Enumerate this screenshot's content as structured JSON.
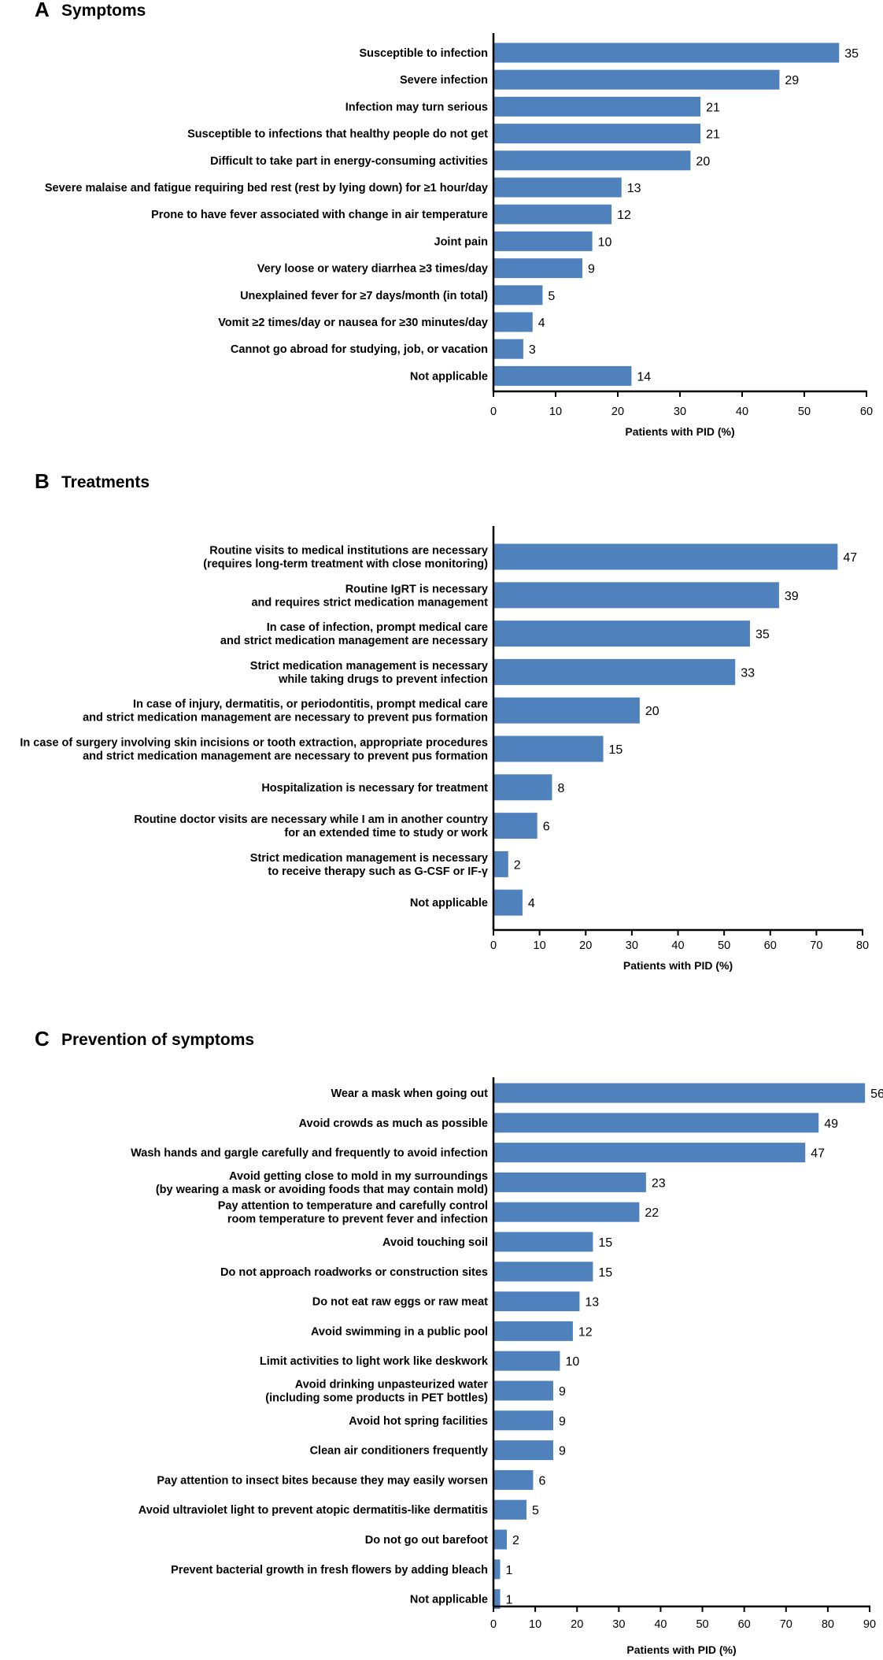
{
  "chart_data": [
    {
      "type": "bar",
      "orientation": "horizontal",
      "letter": "A",
      "title": "Symptoms",
      "xlabel": "Patients with PID (%)",
      "xlim": [
        0,
        60
      ],
      "xticks": [
        0,
        10,
        20,
        30,
        40,
        50,
        60
      ],
      "color": "#4f81bd",
      "categories": [
        [
          "Susceptible to infection"
        ],
        [
          "Severe infection"
        ],
        [
          "Infection may turn serious"
        ],
        [
          "Susceptible to infections that healthy people do not get"
        ],
        [
          "Difficult to take part in energy-consuming activities"
        ],
        [
          "Severe malaise and fatigue requiring bed rest (rest by lying down) for ≥1 hour/day"
        ],
        [
          "Prone to have fever associated with change in air temperature"
        ],
        [
          "Joint pain"
        ],
        [
          "Very loose or watery diarrhea ≥3 times/day"
        ],
        [
          "Unexplained fever for ≥7 days/month (in total)"
        ],
        [
          "Vomit ≥2 times/day or nausea for ≥30 minutes/day"
        ],
        [
          "Cannot go abroad for studying, job, or vacation"
        ],
        [
          "Not applicable"
        ]
      ],
      "values": [
        55.6,
        46.0,
        33.3,
        33.3,
        31.7,
        20.6,
        19.0,
        15.9,
        14.3,
        7.9,
        6.3,
        4.8,
        22.2
      ],
      "data_labels": [
        "35",
        "29",
        "21",
        "21",
        "20",
        "13",
        "12",
        "10",
        "9",
        "5",
        "4",
        "3",
        "14"
      ]
    },
    {
      "type": "bar",
      "orientation": "horizontal",
      "letter": "B",
      "title": "Treatments",
      "xlabel": "Patients with PID (%)",
      "xlim": [
        0,
        80
      ],
      "xticks": [
        0,
        10,
        20,
        30,
        40,
        50,
        60,
        70,
        80
      ],
      "color": "#4f81bd",
      "categories": [
        [
          "Routine visits to medical institutions are necessary",
          "(requires long-term treatment with close monitoring)"
        ],
        [
          "Routine IgRT is necessary",
          "and requires strict medication management"
        ],
        [
          "In case of infection, prompt medical care",
          "and strict medication management are necessary"
        ],
        [
          "Strict medication management is necessary",
          "while taking drugs to prevent infection"
        ],
        [
          "In case of injury, dermatitis, or periodontitis, prompt medical care",
          "and strict medication management are necessary to prevent pus formation"
        ],
        [
          "In case of surgery involving skin incisions or tooth extraction, appropriate procedures",
          "and strict medication management are necessary to prevent pus formation"
        ],
        [
          "Hospitalization is necessary for treatment"
        ],
        [
          "Routine doctor visits are necessary while I am in another country",
          "for an extended time to study or work"
        ],
        [
          "Strict medication management is necessary",
          "to receive therapy such as G-CSF or IF-γ"
        ],
        [
          "Not applicable"
        ]
      ],
      "values": [
        74.6,
        61.9,
        55.6,
        52.4,
        31.7,
        23.8,
        12.7,
        9.5,
        3.2,
        6.3
      ],
      "data_labels": [
        "47",
        "39",
        "35",
        "33",
        "20",
        "15",
        "8",
        "6",
        "2",
        "4"
      ]
    },
    {
      "type": "bar",
      "orientation": "horizontal",
      "letter": "C",
      "title": "Prevention of symptoms",
      "xlabel": "Patients with PID (%)",
      "xlim": [
        0,
        90
      ],
      "xticks": [
        0,
        10,
        20,
        30,
        40,
        50,
        60,
        70,
        80,
        90
      ],
      "color": "#4f81bd",
      "categories": [
        [
          "Wear a mask when going out"
        ],
        [
          "Avoid crowds as much as possible"
        ],
        [
          "Wash hands and gargle carefully and frequently to avoid infection"
        ],
        [
          "Avoid getting close to mold in my surroundings",
          "(by wearing a mask or avoiding foods that may contain mold)"
        ],
        [
          "Pay attention to temperature and carefully control",
          "room temperature to prevent fever and infection"
        ],
        [
          "Avoid touching soil"
        ],
        [
          "Do not approach roadworks or construction sites"
        ],
        [
          "Do not eat raw eggs or raw meat"
        ],
        [
          "Avoid swimming in a public pool"
        ],
        [
          "Limit activities to light work like deskwork"
        ],
        [
          "Avoid drinking unpasteurized water",
          "(including some products in PET bottles)"
        ],
        [
          "Avoid hot spring facilities"
        ],
        [
          "Clean air conditioners frequently"
        ],
        [
          "Pay attention to insect bites because they may easily worsen"
        ],
        [
          "Avoid ultraviolet light to prevent atopic dermatitis-like dermatitis"
        ],
        [
          "Do not go out barefoot"
        ],
        [
          "Prevent bacterial growth in fresh flowers by adding bleach"
        ],
        [
          "Not applicable"
        ]
      ],
      "values": [
        88.9,
        77.8,
        74.6,
        36.5,
        34.9,
        23.8,
        23.8,
        20.6,
        19.0,
        15.9,
        14.3,
        14.3,
        14.3,
        9.5,
        7.9,
        3.2,
        1.6,
        1.6
      ],
      "data_labels": [
        "56",
        "49",
        "47",
        "23",
        "22",
        "15",
        "15",
        "13",
        "12",
        "10",
        "9",
        "9",
        "9",
        "6",
        "5",
        "2",
        "1",
        "1"
      ]
    }
  ]
}
